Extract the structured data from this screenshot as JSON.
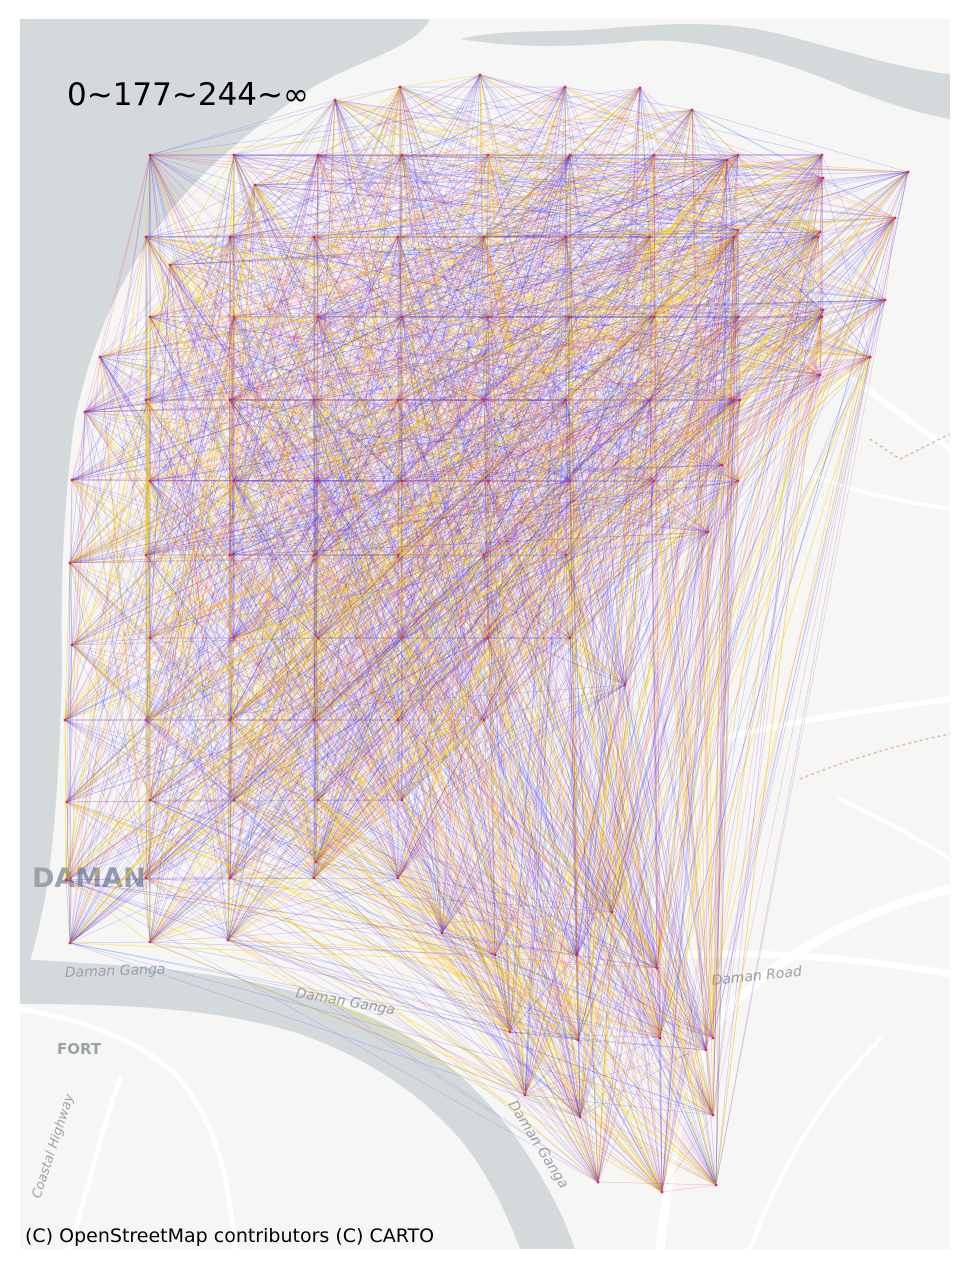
{
  "map": {
    "legend_label": "0~177~244~∞",
    "attribution": "(C) OpenStreetMap contributors (C) CARTO",
    "place_labels": {
      "daman": "DAMAN",
      "fort": "FORT",
      "river_1": "Daman Ganga",
      "river_2": "Daman Ganga",
      "river_3": "Daman Ganga",
      "coastal_highway": "Coastal Highway",
      "daman_road": "Daman Road"
    },
    "colors": {
      "low": "#2b2bff",
      "mid": "#e0245e",
      "high": "#ffd400",
      "water": "#d4dadc",
      "land": "#f6f6f4",
      "road": "#ffffff"
    },
    "flow_classes": [
      "0~177",
      "177~244",
      "244~∞"
    ]
  }
}
